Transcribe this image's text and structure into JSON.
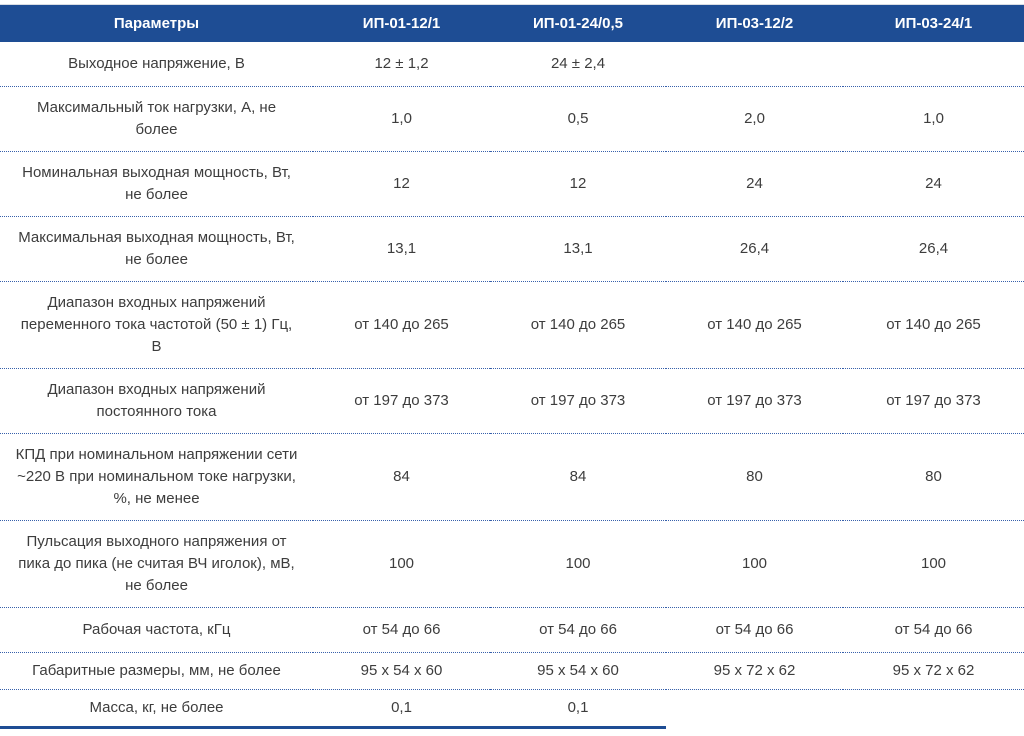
{
  "page": {
    "background": "#ffffff"
  },
  "table": {
    "header_bg": "#1e4d94",
    "header_text_color": "#ffffff",
    "body_text_color": "#3d3d3d",
    "dotted_rule_color": "#3760ab",
    "thick_bottom_rule_color": "#1e4d94",
    "columns": [
      "Параметры",
      "ИП-01-12/1",
      "ИП-01-24/0,5",
      "ИП-03-12/2",
      "ИП-03-24/1"
    ],
    "rows": [
      {
        "label": "Выходное напряжение, В",
        "values": [
          "12 ± 1,2",
          "24 ± 2,4",
          "",
          ""
        ]
      },
      {
        "label": "Максимальный ток нагрузки, А, не более",
        "values": [
          "1,0",
          "0,5",
          "2,0",
          "1,0"
        ]
      },
      {
        "label": "Номинальная выходная мощность, Вт, не более",
        "values": [
          "12",
          "12",
          "24",
          "24"
        ]
      },
      {
        "label": "Максимальная выходная мощность, Вт, не более",
        "values": [
          "13,1",
          "13,1",
          "26,4",
          "26,4"
        ]
      },
      {
        "label": "Диапазон входных напряжений переменного тока частотой (50 ± 1) Гц, В",
        "values": [
          "от 140 до 265",
          "от 140 до 265",
          "от 140 до 265",
          "от 140 до 265"
        ]
      },
      {
        "label": "Диапазон входных напряжений постоянного тока",
        "values": [
          "от 197 до 373",
          "от 197 до 373",
          "от 197 до 373",
          "от 197 до 373"
        ]
      },
      {
        "label": "КПД при номинальном напряжении сети ~220 В при номинальном токе нагрузки, %, не менее",
        "values": [
          "84",
          "84",
          "80",
          "80"
        ]
      },
      {
        "label": "Пульсация выходного напряжения от пика до пика (не считая ВЧ иголок), мВ, не более",
        "values": [
          "100",
          "100",
          "100",
          "100"
        ]
      },
      {
        "label": "Рабочая частота, кГц",
        "values": [
          "от 54 до 66",
          "от 54 до 66",
          "от 54 до 66",
          "от 54 до 66"
        ]
      },
      {
        "label": "Габаритные размеры, мм, не более",
        "values": [
          "95 х 54 х 60",
          "95 х 54 х 60",
          "95 х 72 х 62",
          "95 х 72 х 62"
        ]
      },
      {
        "label": "Масса, кг, не более",
        "values": [
          "0,1",
          "0,1",
          "",
          ""
        ]
      }
    ]
  }
}
